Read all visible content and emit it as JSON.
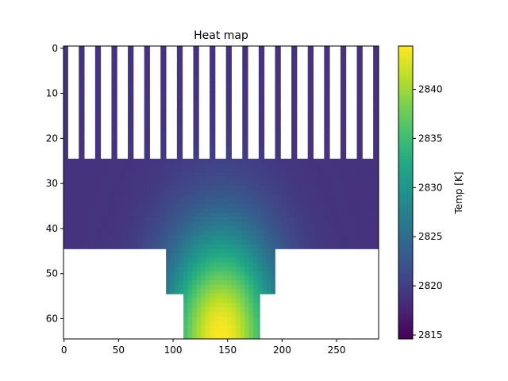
{
  "chart_data": {
    "type": "heatmap",
    "title": "Heat map",
    "xlabel": "",
    "ylabel": "",
    "x_ticks": [
      0,
      50,
      100,
      150,
      200,
      250
    ],
    "y_ticks": [
      0,
      10,
      20,
      30,
      40,
      50,
      60
    ],
    "xlim": [
      -0.5,
      288.5
    ],
    "ylim": [
      64.5,
      -0.5
    ],
    "grid": false,
    "colormap": "viridis",
    "colorbar": {
      "label": "Temp [K]",
      "ticks": [
        2815,
        2820,
        2825,
        2830,
        2835,
        2840
      ],
      "range": [
        2814.6,
        2844.4
      ]
    },
    "fins": {
      "centers": [
        1.5,
        16.5,
        31.5,
        46.5,
        61.5,
        76.5,
        91.5,
        106.5,
        121.5,
        136.5,
        151.5,
        166.5,
        181.5,
        196.5,
        211.5,
        226.5,
        241.5,
        256.5,
        271.5,
        286.5
      ],
      "width": 5,
      "y_range": [
        0,
        24
      ]
    },
    "regions": [
      {
        "name": "base",
        "x_range": [
          0,
          288
        ],
        "y_range": [
          25,
          44
        ]
      },
      {
        "name": "neck",
        "x_range": [
          94,
          193
        ],
        "y_range": [
          45,
          54
        ]
      },
      {
        "name": "source",
        "x_range": [
          110,
          179
        ],
        "y_range": [
          55,
          64
        ]
      }
    ],
    "hotspot": {
      "x": 144,
      "y": 64,
      "value": 2844.4
    },
    "baseline_temp": 2819
  }
}
